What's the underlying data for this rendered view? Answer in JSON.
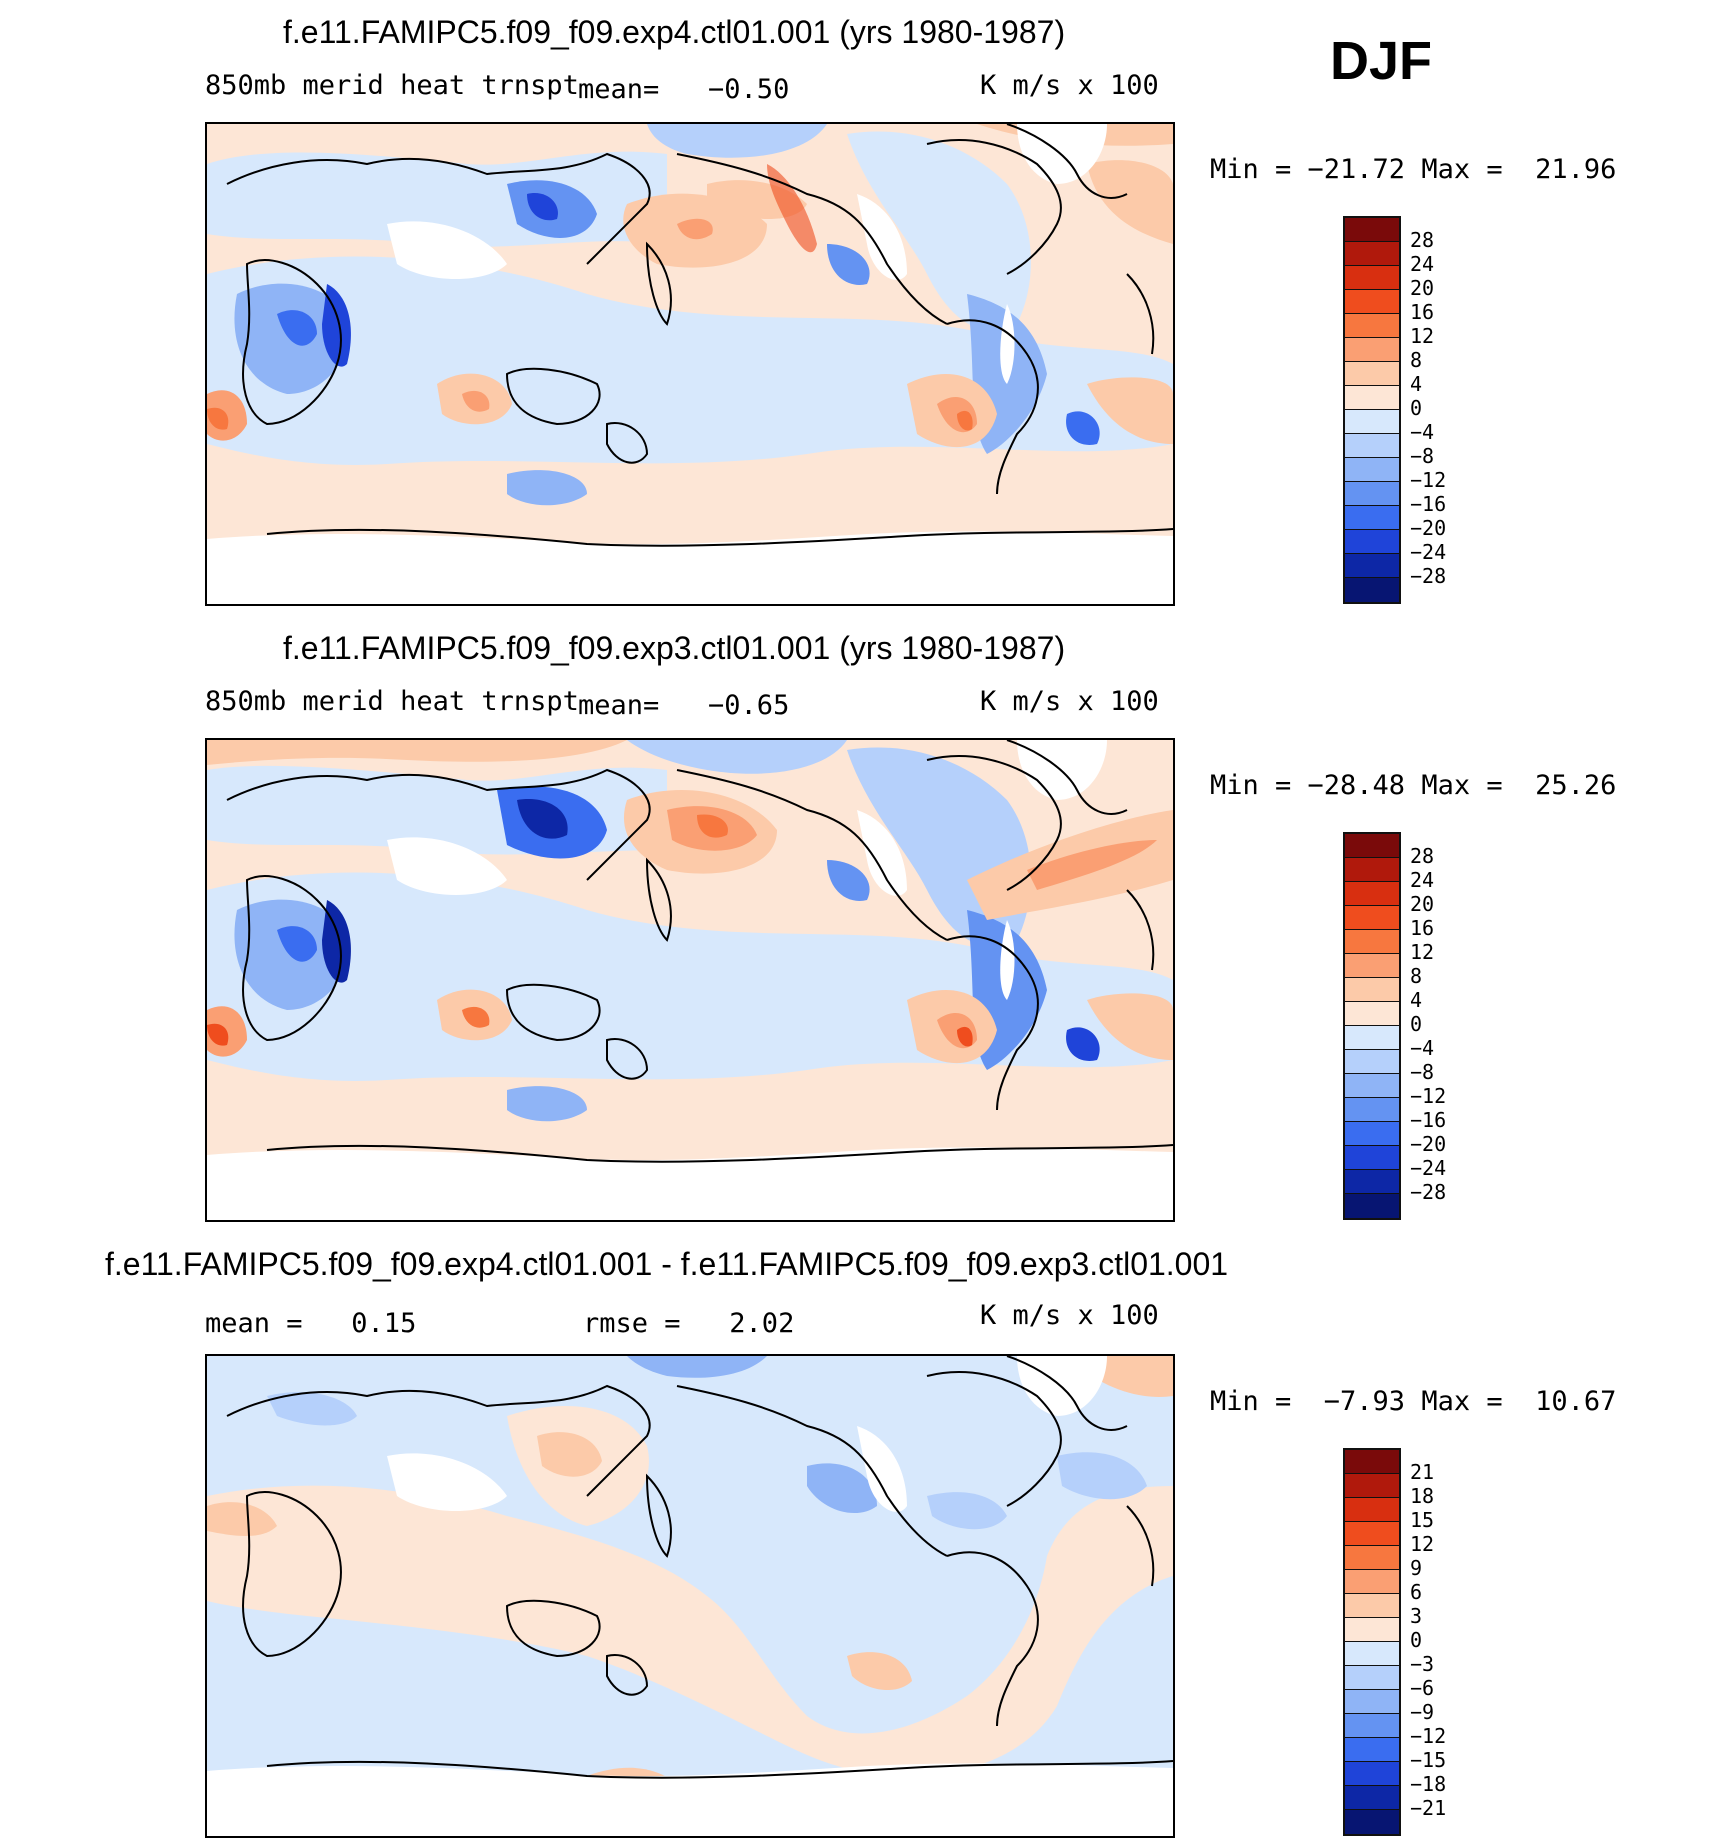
{
  "season": "DJF",
  "panels": [
    {
      "title": "f.e11.FAMIPC5.f09_f09.exp4.ctl01.001 (yrs 1980-1987)",
      "variable": "850mb merid heat trnspt",
      "stat_text": "mean=   −0.50",
      "units": "K m/s x 100",
      "minmax": "Min = −21.72 Max =  21.96",
      "levels": [
        "28",
        "24",
        "20",
        "16",
        "12",
        "8",
        "4",
        "0",
        "−4",
        "−8",
        "−12",
        "−16",
        "−20",
        "−24",
        "−28"
      ]
    },
    {
      "title": "f.e11.FAMIPC5.f09_f09.exp3.ctl01.001 (yrs 1980-1987)",
      "variable": "850mb merid heat trnspt",
      "stat_text": "mean=   −0.65",
      "units": "K m/s x 100",
      "minmax": "Min = −28.48 Max =  25.26",
      "levels": [
        "28",
        "24",
        "20",
        "16",
        "12",
        "8",
        "4",
        "0",
        "−4",
        "−8",
        "−12",
        "−16",
        "−20",
        "−24",
        "−28"
      ]
    },
    {
      "title": "f.e11.FAMIPC5.f09_f09.exp4.ctl01.001 - f.e11.FAMIPC5.f09_f09.exp3.ctl01.001",
      "mean_text": "mean =   0.15",
      "rmse_text": "rmse =   2.02",
      "units": "K m/s x 100",
      "minmax": "Min =  −7.93 Max =  10.67",
      "levels": [
        "21",
        "18",
        "15",
        "12",
        "9",
        "6",
        "3",
        "0",
        "−3",
        "−6",
        "−9",
        "−12",
        "−15",
        "−18",
        "−21"
      ]
    }
  ],
  "colorbar_colors": [
    "#7a0a0a",
    "#b0190c",
    "#d82f10",
    "#ef4d1e",
    "#f7773f",
    "#fa9f73",
    "#fccaa9",
    "#fde6d6",
    "#d7e8fc",
    "#b5d0fb",
    "#8fb4f6",
    "#6493f2",
    "#3a6df0",
    "#1f44d9",
    "#0d27a6",
    "#071572"
  ]
}
